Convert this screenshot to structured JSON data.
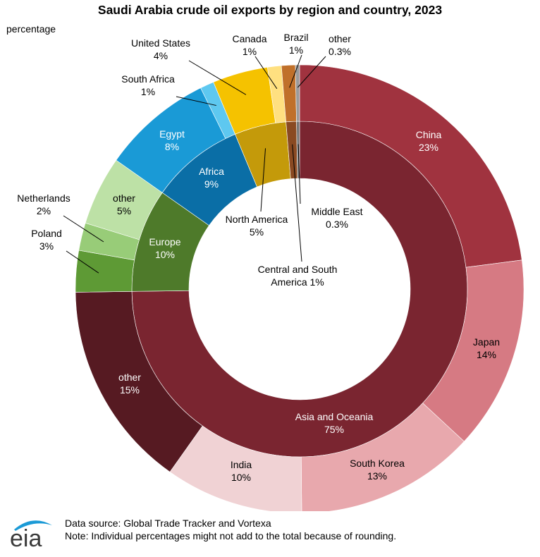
{
  "title": "Saudi Arabia crude oil exports by region and country, 2023",
  "unit_label": "percentage",
  "footer": {
    "source": "Data source: Global Trade Tracker and Vortexa",
    "note": "Note: Individual percentages might not add to the total because of rounding."
  },
  "logo_text": "eia",
  "chart_data": {
    "type": "pie",
    "subtype": "nested-donut",
    "title": "Saudi Arabia crude oil exports by region and country, 2023",
    "unit": "percentage",
    "inner_ring": {
      "name": "region",
      "slices": [
        {
          "label": "Asia and Oceania",
          "value": 75,
          "value_label": "75%",
          "color": "#7a2530"
        },
        {
          "label": "Europe",
          "value": 10,
          "value_label": "10%",
          "color": "#4e7a2a"
        },
        {
          "label": "Africa",
          "value": 9,
          "value_label": "9%",
          "color": "#0a6ea6"
        },
        {
          "label": "North America",
          "value": 5,
          "value_label": "5%",
          "color": "#c49a0a"
        },
        {
          "label": "Central and South America",
          "value": 1,
          "value_label": "1%",
          "color": "#8a4a22"
        },
        {
          "label": "Middle East",
          "value": 0.3,
          "value_label": "0.3%",
          "color": "#777777"
        }
      ]
    },
    "outer_ring": {
      "name": "country",
      "slices": [
        {
          "label": "China",
          "value": 23,
          "value_label": "23%",
          "color": "#a0333f"
        },
        {
          "label": "Japan",
          "value": 14,
          "value_label": "14%",
          "color": "#d67a83"
        },
        {
          "label": "South Korea",
          "value": 13,
          "value_label": "13%",
          "color": "#e8a8ad"
        },
        {
          "label": "India",
          "value": 10,
          "value_label": "10%",
          "color": "#f0d2d4"
        },
        {
          "label": "other",
          "value": 15,
          "value_label": "15%",
          "color": "#561a22"
        },
        {
          "label": "Poland",
          "value": 3,
          "value_label": "3%",
          "color": "#5e9a35"
        },
        {
          "label": "Netherlands",
          "value": 2,
          "value_label": "2%",
          "color": "#98cc78"
        },
        {
          "label": "other",
          "value": 5,
          "value_label": "5%",
          "color": "#bde1a6"
        },
        {
          "label": "Egypt",
          "value": 8,
          "value_label": "8%",
          "color": "#1a9ad6"
        },
        {
          "label": "South Africa",
          "value": 1,
          "value_label": "1%",
          "color": "#5ec8f0"
        },
        {
          "label": "United States",
          "value": 4,
          "value_label": "4%",
          "color": "#f5c200"
        },
        {
          "label": "Canada",
          "value": 1,
          "value_label": "1%",
          "color": "#ffe080"
        },
        {
          "label": "Brazil",
          "value": 1,
          "value_label": "1%",
          "color": "#c0702a"
        },
        {
          "label": "other",
          "value": 0.3,
          "value_label": "0.3%",
          "color": "#9a9a9a"
        }
      ]
    }
  }
}
